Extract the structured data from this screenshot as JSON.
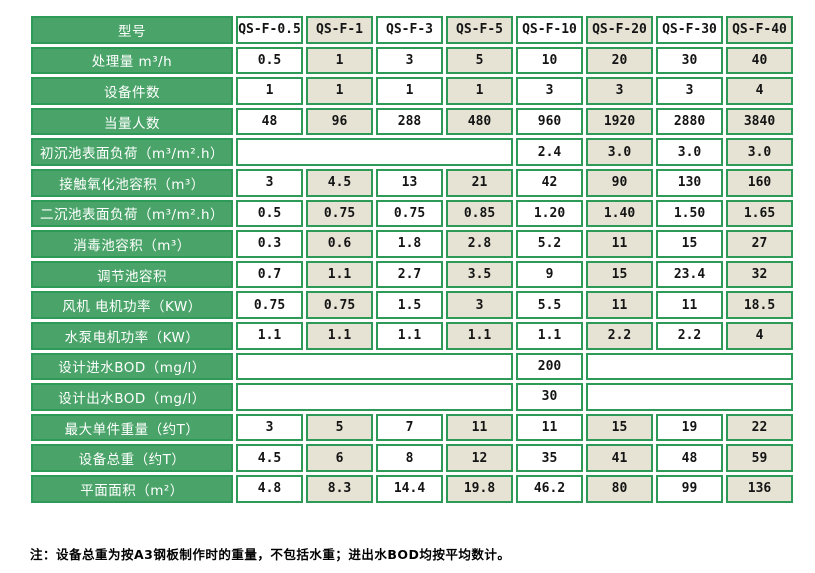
{
  "colors": {
    "label_green": "#4aa469",
    "border_green": "#2e9a58",
    "stripe_beige": "#e6e3d4",
    "cell_white": "#ffffff",
    "label_text": "#ffffff",
    "data_text": "#141414"
  },
  "table": {
    "corner_label": "型号",
    "models": [
      "QS-F-0.5",
      "QS-F-1",
      "QS-F-3",
      "QS-F-5",
      "QS-F-10",
      "QS-F-20",
      "QS-F-30",
      "QS-F-40"
    ],
    "rows": [
      {
        "label": "处理量 m³/h",
        "values": [
          "0.5",
          "1",
          "3",
          "5",
          "10",
          "20",
          "30",
          "40"
        ]
      },
      {
        "label": "设备件数",
        "values": [
          "1",
          "1",
          "1",
          "1",
          "3",
          "3",
          "3",
          "4"
        ]
      },
      {
        "label": "当量人数",
        "values": [
          "48",
          "96",
          "288",
          "480",
          "960",
          "1920",
          "2880",
          "3840"
        ]
      },
      {
        "label": "初沉池表面负荷（m³/m².h）",
        "cells": [
          {
            "text": "",
            "span": 4
          },
          {
            "text": "2.4"
          },
          {
            "text": "3.0"
          },
          {
            "text": "3.0"
          },
          {
            "text": "3.0"
          }
        ]
      },
      {
        "label": "接触氧化池容积（m³）",
        "values": [
          "3",
          "4.5",
          "13",
          "21",
          "42",
          "90",
          "130",
          "160"
        ]
      },
      {
        "label": "二沉池表面负荷（m³/m².h）",
        "values": [
          "0.5",
          "0.75",
          "0.75",
          "0.85",
          "1.20",
          "1.40",
          "1.50",
          "1.65"
        ]
      },
      {
        "label": "消毒池容积（m³）",
        "values": [
          "0.3",
          "0.6",
          "1.8",
          "2.8",
          "5.2",
          "11",
          "15",
          "27"
        ]
      },
      {
        "label": "调节池容积",
        "values": [
          "0.7",
          "1.1",
          "2.7",
          "3.5",
          "9",
          "15",
          "23.4",
          "32"
        ]
      },
      {
        "label": "风机 电机功率（KW）",
        "values": [
          "0.75",
          "0.75",
          "1.5",
          "3",
          "5.5",
          "11",
          "11",
          "18.5"
        ]
      },
      {
        "label": "水泵电机功率（KW）",
        "values": [
          "1.1",
          "1.1",
          "1.1",
          "1.1",
          "1.1",
          "2.2",
          "2.2",
          "4"
        ]
      },
      {
        "label": "设计进水BOD（mg/l）",
        "cells": [
          {
            "text": "",
            "span": 4
          },
          {
            "text": "200"
          },
          {
            "text": "",
            "span": 3
          }
        ]
      },
      {
        "label": "设计出水BOD（mg/l）",
        "cells": [
          {
            "text": "",
            "span": 4
          },
          {
            "text": "30"
          },
          {
            "text": "",
            "span": 3
          }
        ]
      },
      {
        "label": "最大单件重量（约T）",
        "values": [
          "3",
          "5",
          "7",
          "11",
          "11",
          "15",
          "19",
          "22"
        ]
      },
      {
        "label": "设备总重（约T）",
        "values": [
          "4.5",
          "6",
          "8",
          "12",
          "35",
          "41",
          "48",
          "59"
        ]
      },
      {
        "label": "平面面积（m²）",
        "values": [
          "4.8",
          "8.3",
          "14.4",
          "19.8",
          "46.2",
          "80",
          "99",
          "136"
        ]
      }
    ]
  },
  "note": "注：设备总重为按A3钢板制作时的重量，不包括水重；进出水BOD均按平均数计。"
}
